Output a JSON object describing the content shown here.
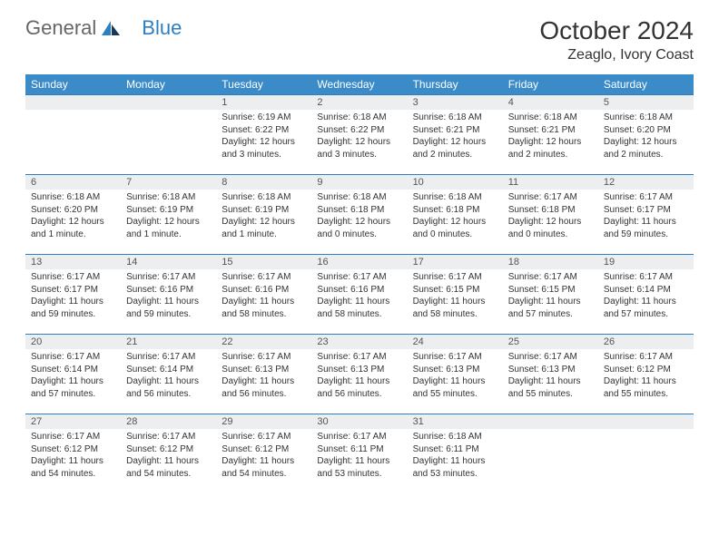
{
  "logo": {
    "text1": "General",
    "text2": "Blue"
  },
  "title": "October 2024",
  "location": "Zeaglo, Ivory Coast",
  "colors": {
    "header_bg": "#3b8bc9",
    "header_text": "#ffffff",
    "daynum_bg": "#eceef0",
    "border": "#2d7fc1",
    "text": "#333333"
  },
  "weekdays": [
    "Sunday",
    "Monday",
    "Tuesday",
    "Wednesday",
    "Thursday",
    "Friday",
    "Saturday"
  ],
  "leading_blanks": 2,
  "days": [
    {
      "n": 1,
      "sr": "6:19 AM",
      "ss": "6:22 PM",
      "dl": "12 hours and 3 minutes."
    },
    {
      "n": 2,
      "sr": "6:18 AM",
      "ss": "6:22 PM",
      "dl": "12 hours and 3 minutes."
    },
    {
      "n": 3,
      "sr": "6:18 AM",
      "ss": "6:21 PM",
      "dl": "12 hours and 2 minutes."
    },
    {
      "n": 4,
      "sr": "6:18 AM",
      "ss": "6:21 PM",
      "dl": "12 hours and 2 minutes."
    },
    {
      "n": 5,
      "sr": "6:18 AM",
      "ss": "6:20 PM",
      "dl": "12 hours and 2 minutes."
    },
    {
      "n": 6,
      "sr": "6:18 AM",
      "ss": "6:20 PM",
      "dl": "12 hours and 1 minute."
    },
    {
      "n": 7,
      "sr": "6:18 AM",
      "ss": "6:19 PM",
      "dl": "12 hours and 1 minute."
    },
    {
      "n": 8,
      "sr": "6:18 AM",
      "ss": "6:19 PM",
      "dl": "12 hours and 1 minute."
    },
    {
      "n": 9,
      "sr": "6:18 AM",
      "ss": "6:18 PM",
      "dl": "12 hours and 0 minutes."
    },
    {
      "n": 10,
      "sr": "6:18 AM",
      "ss": "6:18 PM",
      "dl": "12 hours and 0 minutes."
    },
    {
      "n": 11,
      "sr": "6:17 AM",
      "ss": "6:18 PM",
      "dl": "12 hours and 0 minutes."
    },
    {
      "n": 12,
      "sr": "6:17 AM",
      "ss": "6:17 PM",
      "dl": "11 hours and 59 minutes."
    },
    {
      "n": 13,
      "sr": "6:17 AM",
      "ss": "6:17 PM",
      "dl": "11 hours and 59 minutes."
    },
    {
      "n": 14,
      "sr": "6:17 AM",
      "ss": "6:16 PM",
      "dl": "11 hours and 59 minutes."
    },
    {
      "n": 15,
      "sr": "6:17 AM",
      "ss": "6:16 PM",
      "dl": "11 hours and 58 minutes."
    },
    {
      "n": 16,
      "sr": "6:17 AM",
      "ss": "6:16 PM",
      "dl": "11 hours and 58 minutes."
    },
    {
      "n": 17,
      "sr": "6:17 AM",
      "ss": "6:15 PM",
      "dl": "11 hours and 58 minutes."
    },
    {
      "n": 18,
      "sr": "6:17 AM",
      "ss": "6:15 PM",
      "dl": "11 hours and 57 minutes."
    },
    {
      "n": 19,
      "sr": "6:17 AM",
      "ss": "6:14 PM",
      "dl": "11 hours and 57 minutes."
    },
    {
      "n": 20,
      "sr": "6:17 AM",
      "ss": "6:14 PM",
      "dl": "11 hours and 57 minutes."
    },
    {
      "n": 21,
      "sr": "6:17 AM",
      "ss": "6:14 PM",
      "dl": "11 hours and 56 minutes."
    },
    {
      "n": 22,
      "sr": "6:17 AM",
      "ss": "6:13 PM",
      "dl": "11 hours and 56 minutes."
    },
    {
      "n": 23,
      "sr": "6:17 AM",
      "ss": "6:13 PM",
      "dl": "11 hours and 56 minutes."
    },
    {
      "n": 24,
      "sr": "6:17 AM",
      "ss": "6:13 PM",
      "dl": "11 hours and 55 minutes."
    },
    {
      "n": 25,
      "sr": "6:17 AM",
      "ss": "6:13 PM",
      "dl": "11 hours and 55 minutes."
    },
    {
      "n": 26,
      "sr": "6:17 AM",
      "ss": "6:12 PM",
      "dl": "11 hours and 55 minutes."
    },
    {
      "n": 27,
      "sr": "6:17 AM",
      "ss": "6:12 PM",
      "dl": "11 hours and 54 minutes."
    },
    {
      "n": 28,
      "sr": "6:17 AM",
      "ss": "6:12 PM",
      "dl": "11 hours and 54 minutes."
    },
    {
      "n": 29,
      "sr": "6:17 AM",
      "ss": "6:12 PM",
      "dl": "11 hours and 54 minutes."
    },
    {
      "n": 30,
      "sr": "6:17 AM",
      "ss": "6:11 PM",
      "dl": "11 hours and 53 minutes."
    },
    {
      "n": 31,
      "sr": "6:18 AM",
      "ss": "6:11 PM",
      "dl": "11 hours and 53 minutes."
    }
  ],
  "labels": {
    "sunrise": "Sunrise: ",
    "sunset": "Sunset: ",
    "daylight": "Daylight: "
  }
}
